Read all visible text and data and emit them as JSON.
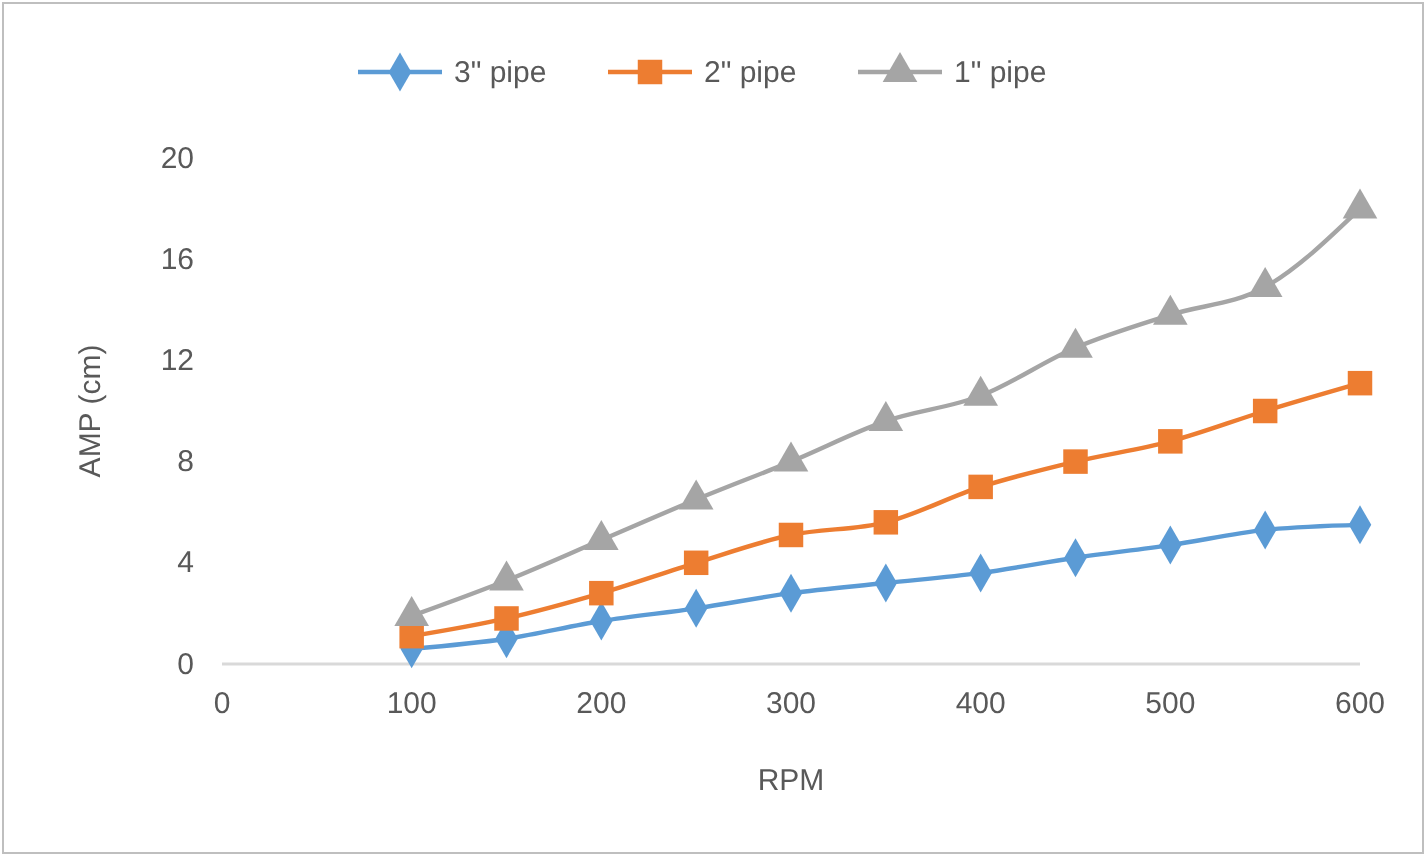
{
  "chart_data": {
    "type": "line",
    "xlabel": "RPM",
    "ylabel": "AMP (cm)",
    "x": [
      100,
      150,
      200,
      250,
      300,
      350,
      400,
      450,
      500,
      550,
      600
    ],
    "series": [
      {
        "name": "3\" pipe",
        "color": "#5b9bd5",
        "marker": "diamond",
        "values": [
          0.6,
          1.0,
          1.7,
          2.2,
          2.8,
          3.2,
          3.6,
          4.2,
          4.7,
          5.3,
          5.5
        ]
      },
      {
        "name": "2\" pipe",
        "color": "#ed7d31",
        "marker": "square",
        "values": [
          1.1,
          1.8,
          2.8,
          4.0,
          5.1,
          5.6,
          7.0,
          8.0,
          8.8,
          10.0,
          11.1
        ]
      },
      {
        "name": "1\" pipe",
        "color": "#a5a5a5",
        "marker": "triangle",
        "values": [
          1.9,
          3.3,
          4.9,
          6.5,
          8.0,
          9.6,
          10.6,
          12.5,
          13.8,
          14.9,
          18.0
        ]
      }
    ],
    "xlim": [
      0,
      600
    ],
    "xticks": [
      0,
      100,
      200,
      300,
      400,
      500,
      600
    ],
    "ylim": [
      0,
      20
    ],
    "yticks": [
      0,
      4,
      8,
      12,
      16,
      20
    ],
    "grid": false,
    "legend": "top"
  }
}
